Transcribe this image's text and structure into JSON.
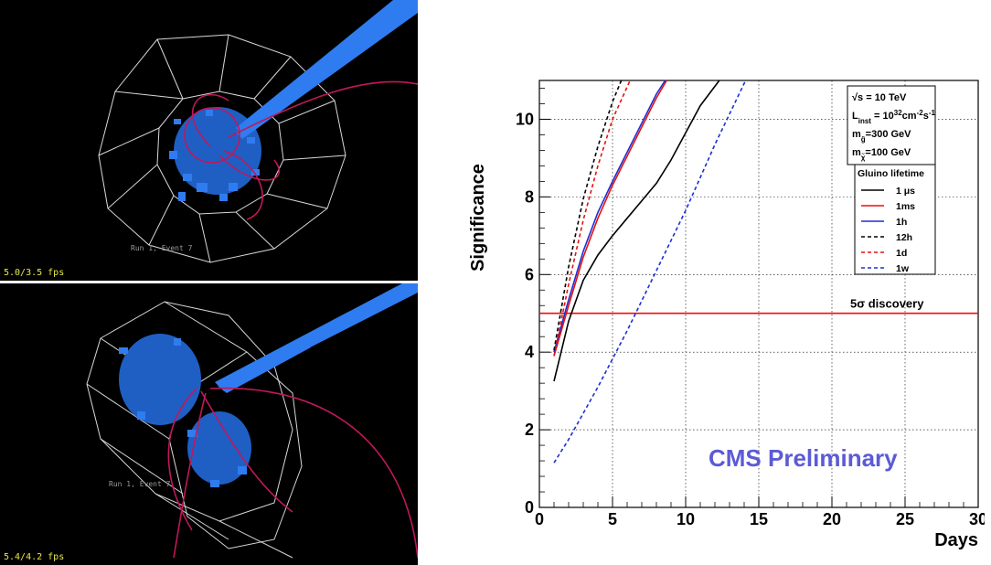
{
  "event_displays": [
    {
      "fps": "5.0/3.5 fps",
      "event": "Run 1, Event 7"
    },
    {
      "fps": "5.4/4.2 fps",
      "event": "Run 1, Event 7"
    }
  ],
  "chart_data": {
    "type": "line",
    "xlabel": "Days",
    "ylabel": "Significance",
    "xlim": [
      0,
      30
    ],
    "ylim": [
      0,
      11
    ],
    "xticks": [
      0,
      5,
      10,
      15,
      20,
      25,
      30
    ],
    "yticks": [
      0,
      2,
      4,
      6,
      8,
      10
    ],
    "grid": true,
    "conditions": [
      "√s = 10 TeV",
      "L_inst = 10^32 cm^-2 s^-1",
      "m_g̃ = 300 GeV",
      "m_χ̃ = 100 GeV"
    ],
    "legend_title": "Gluino lifetime",
    "legend_position": "right",
    "series": [
      {
        "name": "1 μs",
        "color": "#000000",
        "dash": "solid",
        "x": [
          1,
          2,
          3,
          4,
          5,
          6,
          7,
          8,
          9,
          10,
          11,
          12.3
        ],
        "y": [
          3.25,
          4.8,
          5.85,
          6.5,
          7.0,
          7.45,
          7.9,
          8.35,
          8.95,
          9.65,
          10.35,
          11.0
        ]
      },
      {
        "name": "1ms",
        "color": "#e8100e",
        "dash": "solid",
        "x": [
          1,
          2,
          3,
          4,
          5,
          6,
          7,
          8,
          8.7
        ],
        "y": [
          3.9,
          5.2,
          6.45,
          7.45,
          8.3,
          9.05,
          9.8,
          10.55,
          11.0
        ]
      },
      {
        "name": "1h",
        "color": "#1c2fd6",
        "dash": "solid",
        "x": [
          1,
          2,
          3,
          4,
          5,
          6,
          7,
          8,
          8.6
        ],
        "y": [
          4.0,
          5.35,
          6.6,
          7.6,
          8.4,
          9.15,
          9.9,
          10.65,
          11.0
        ]
      },
      {
        "name": "12h",
        "color": "#000000",
        "dash": "dashed",
        "x": [
          1,
          2,
          3,
          4,
          5,
          5.6
        ],
        "y": [
          4.05,
          6.2,
          7.95,
          9.3,
          10.45,
          11.0
        ]
      },
      {
        "name": "1d",
        "color": "#e8100e",
        "dash": "dashed",
        "x": [
          1,
          2,
          3,
          4,
          5,
          6.2
        ],
        "y": [
          3.9,
          5.75,
          7.4,
          8.8,
          10.0,
          11.0
        ]
      },
      {
        "name": "1w",
        "color": "#1c2fd6",
        "dash": "dashed",
        "x": [
          1,
          2,
          4,
          6,
          8,
          10,
          12,
          14.1
        ],
        "y": [
          1.15,
          1.75,
          3.1,
          4.55,
          6.1,
          7.65,
          9.35,
          11.0
        ]
      }
    ],
    "discovery_line": {
      "y": 5,
      "label": "5σ discovery",
      "color": "#e8100e"
    },
    "watermark": {
      "text": "CMS Preliminary",
      "color": "#5b5bd6"
    }
  }
}
